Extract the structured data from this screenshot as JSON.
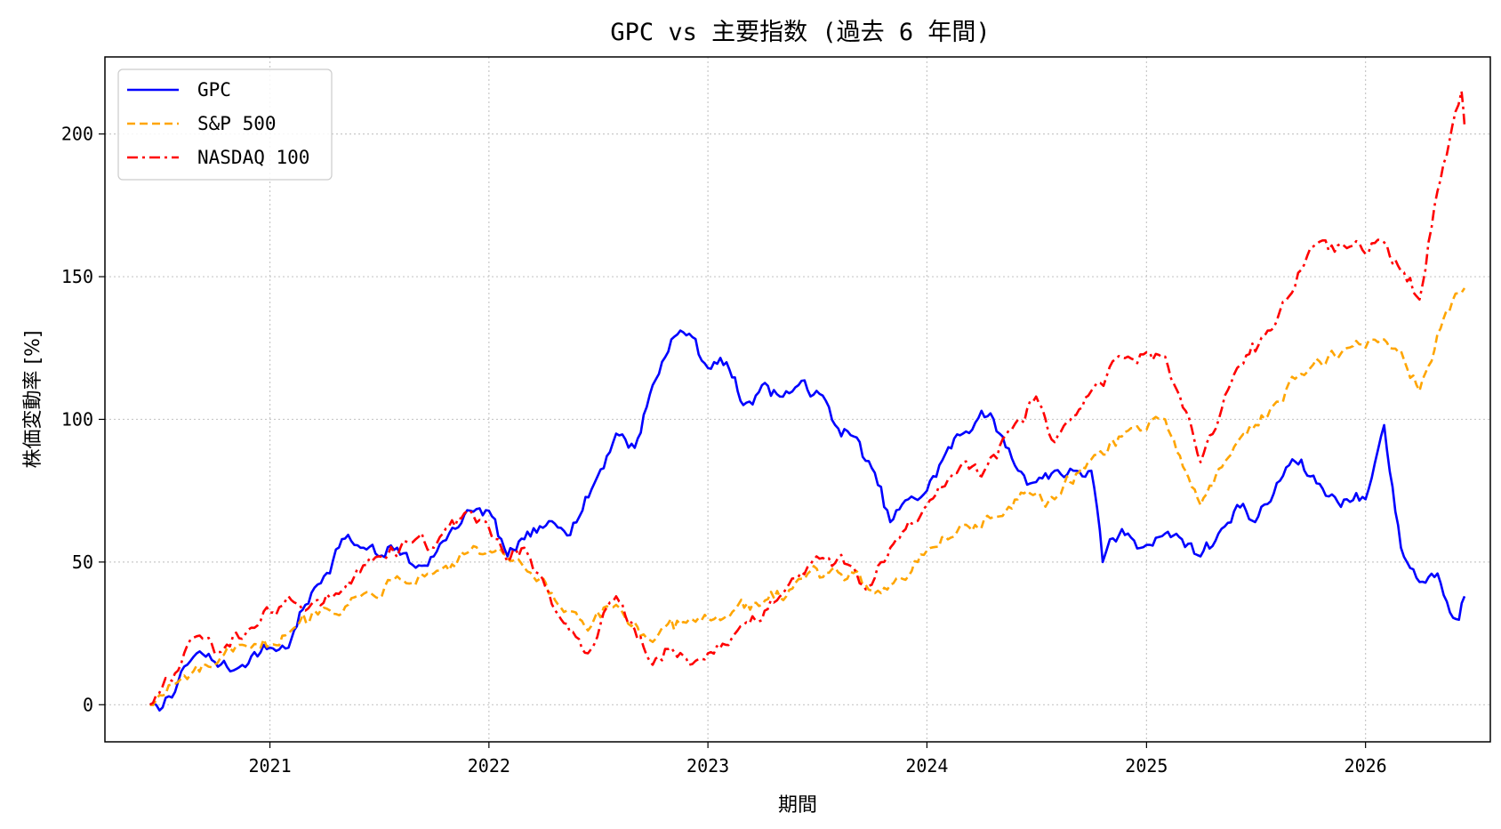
{
  "chart_data": {
    "type": "line",
    "title": "GPC vs 主要指数 (過去 6 年間)",
    "xlabel": "期間",
    "ylabel": "株価変動率 [%]",
    "x_ticks": [
      "2021",
      "2022",
      "2023",
      "2024",
      "2025",
      "2026"
    ],
    "y_ticks": [
      "0",
      "50",
      "100",
      "150",
      "200"
    ],
    "xlim": [
      "2020-04-01",
      "2026-07-28"
    ],
    "ylim": [
      -13,
      227
    ],
    "grid": true,
    "legend_position": "top-left",
    "series": [
      {
        "name": "GPC",
        "color": "#0000ff",
        "style": "solid",
        "points": [
          [
            "2020-06-15",
            0
          ],
          [
            "2020-07-01",
            -2
          ],
          [
            "2020-08-01",
            8
          ],
          [
            "2020-09-01",
            18
          ],
          [
            "2020-10-01",
            15
          ],
          [
            "2020-11-01",
            12
          ],
          [
            "2020-12-01",
            17
          ],
          [
            "2021-01-01",
            20
          ],
          [
            "2021-02-01",
            20
          ],
          [
            "2021-03-01",
            35
          ],
          [
            "2021-04-01",
            45
          ],
          [
            "2021-05-01",
            58
          ],
          [
            "2021-06-01",
            55
          ],
          [
            "2021-07-01",
            52
          ],
          [
            "2021-08-01",
            55
          ],
          [
            "2021-09-01",
            48
          ],
          [
            "2021-10-01",
            52
          ],
          [
            "2021-11-01",
            62
          ],
          [
            "2021-12-01",
            68
          ],
          [
            "2022-01-01",
            68
          ],
          [
            "2022-02-01",
            52
          ],
          [
            "2022-03-01",
            58
          ],
          [
            "2022-04-01",
            62
          ],
          [
            "2022-05-01",
            62
          ],
          [
            "2022-06-01",
            66
          ],
          [
            "2022-07-01",
            80
          ],
          [
            "2022-08-01",
            95
          ],
          [
            "2022-09-01",
            90
          ],
          [
            "2022-10-01",
            112
          ],
          [
            "2022-11-01",
            128
          ],
          [
            "2022-12-01",
            130
          ],
          [
            "2023-01-01",
            118
          ],
          [
            "2023-02-01",
            120
          ],
          [
            "2023-03-01",
            105
          ],
          [
            "2023-04-01",
            112
          ],
          [
            "2023-05-01",
            108
          ],
          [
            "2023-06-01",
            112
          ],
          [
            "2023-07-01",
            110
          ],
          [
            "2023-08-01",
            98
          ],
          [
            "2023-09-01",
            94
          ],
          [
            "2023-10-01",
            83
          ],
          [
            "2023-11-01",
            64
          ],
          [
            "2023-12-01",
            72
          ],
          [
            "2024-01-01",
            75
          ],
          [
            "2024-02-01",
            88
          ],
          [
            "2024-03-01",
            95
          ],
          [
            "2024-04-01",
            103
          ],
          [
            "2024-05-01",
            95
          ],
          [
            "2024-06-01",
            82
          ],
          [
            "2024-07-01",
            78
          ],
          [
            "2024-08-01",
            82
          ],
          [
            "2024-09-01",
            82
          ],
          [
            "2024-10-01",
            82
          ],
          [
            "2024-10-20",
            50
          ],
          [
            "2024-11-01",
            58
          ],
          [
            "2024-12-01",
            60
          ],
          [
            "2025-01-01",
            56
          ],
          [
            "2025-02-01",
            60
          ],
          [
            "2025-03-01",
            58
          ],
          [
            "2025-04-01",
            52
          ],
          [
            "2025-05-01",
            60
          ],
          [
            "2025-06-01",
            70
          ],
          [
            "2025-07-01",
            64
          ],
          [
            "2025-08-01",
            74
          ],
          [
            "2025-09-01",
            86
          ],
          [
            "2025-10-01",
            80
          ],
          [
            "2025-11-01",
            73
          ],
          [
            "2025-12-01",
            72
          ],
          [
            "2026-01-01",
            72
          ],
          [
            "2026-02-01",
            98
          ],
          [
            "2026-03-01",
            55
          ],
          [
            "2026-04-01",
            43
          ],
          [
            "2026-05-01",
            46
          ],
          [
            "2026-06-01",
            30
          ],
          [
            "2026-06-15",
            38
          ]
        ]
      },
      {
        "name": "S&P 500",
        "color": "#ffa500",
        "style": "dashed",
        "points": [
          [
            "2020-06-15",
            0
          ],
          [
            "2020-08-01",
            8
          ],
          [
            "2020-10-01",
            14
          ],
          [
            "2020-12-01",
            20
          ],
          [
            "2021-02-01",
            25
          ],
          [
            "2021-04-01",
            34
          ],
          [
            "2021-06-01",
            38
          ],
          [
            "2021-08-01",
            45
          ],
          [
            "2021-10-01",
            46
          ],
          [
            "2021-12-01",
            54
          ],
          [
            "2022-01-01",
            54
          ],
          [
            "2022-03-01",
            48
          ],
          [
            "2022-05-01",
            34
          ],
          [
            "2022-06-15",
            26
          ],
          [
            "2022-08-01",
            35
          ],
          [
            "2022-10-01",
            22
          ],
          [
            "2022-12-01",
            30
          ],
          [
            "2023-02-01",
            31
          ],
          [
            "2023-04-01",
            35
          ],
          [
            "2023-06-01",
            44
          ],
          [
            "2023-08-01",
            48
          ],
          [
            "2023-10-01",
            40
          ],
          [
            "2023-11-01",
            42
          ],
          [
            "2024-01-01",
            54
          ],
          [
            "2024-03-01",
            63
          ],
          [
            "2024-05-01",
            66
          ],
          [
            "2024-07-01",
            74
          ],
          [
            "2024-08-01",
            72
          ],
          [
            "2024-10-01",
            86
          ],
          [
            "2024-12-01",
            96
          ],
          [
            "2025-02-01",
            100
          ],
          [
            "2025-04-01",
            70
          ],
          [
            "2025-06-01",
            92
          ],
          [
            "2025-08-01",
            105
          ],
          [
            "2025-10-01",
            118
          ],
          [
            "2025-12-01",
            125
          ],
          [
            "2026-02-01",
            128
          ],
          [
            "2026-03-01",
            124
          ],
          [
            "2026-04-01",
            110
          ],
          [
            "2026-05-01",
            130
          ],
          [
            "2026-06-15",
            146
          ]
        ]
      },
      {
        "name": "NASDAQ 100",
        "color": "#ff0000",
        "style": "dashdot",
        "points": [
          [
            "2020-06-15",
            0
          ],
          [
            "2020-08-01",
            12
          ],
          [
            "2020-09-01",
            24
          ],
          [
            "2020-10-01",
            18
          ],
          [
            "2020-12-01",
            27
          ],
          [
            "2021-02-01",
            38
          ],
          [
            "2021-03-01",
            33
          ],
          [
            "2021-05-01",
            40
          ],
          [
            "2021-07-01",
            52
          ],
          [
            "2021-09-01",
            58
          ],
          [
            "2021-10-01",
            55
          ],
          [
            "2021-12-01",
            68
          ],
          [
            "2022-01-01",
            62
          ],
          [
            "2022-02-01",
            50
          ],
          [
            "2022-03-01",
            55
          ],
          [
            "2022-05-01",
            30
          ],
          [
            "2022-06-15",
            18
          ],
          [
            "2022-08-01",
            38
          ],
          [
            "2022-10-01",
            14
          ],
          [
            "2022-11-01",
            20
          ],
          [
            "2022-12-01",
            14
          ],
          [
            "2023-01-01",
            18
          ],
          [
            "2023-03-01",
            28
          ],
          [
            "2023-05-01",
            38
          ],
          [
            "2023-07-01",
            52
          ],
          [
            "2023-09-01",
            48
          ],
          [
            "2023-10-01",
            42
          ],
          [
            "2023-11-01",
            55
          ],
          [
            "2024-01-01",
            70
          ],
          [
            "2024-03-01",
            85
          ],
          [
            "2024-04-01",
            80
          ],
          [
            "2024-06-01",
            100
          ],
          [
            "2024-07-01",
            108
          ],
          [
            "2024-08-01",
            92
          ],
          [
            "2024-10-01",
            110
          ],
          [
            "2024-12-01",
            122
          ],
          [
            "2025-02-01",
            122
          ],
          [
            "2025-04-01",
            85
          ],
          [
            "2025-06-01",
            118
          ],
          [
            "2025-08-01",
            132
          ],
          [
            "2025-10-01",
            160
          ],
          [
            "2025-12-01",
            160
          ],
          [
            "2026-02-01",
            162
          ],
          [
            "2026-03-01",
            152
          ],
          [
            "2026-04-01",
            142
          ],
          [
            "2026-05-01",
            180
          ],
          [
            "2026-06-10",
            215
          ],
          [
            "2026-06-15",
            203
          ]
        ]
      }
    ]
  }
}
